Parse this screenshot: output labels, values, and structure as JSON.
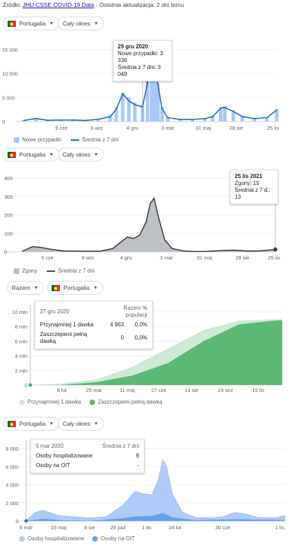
{
  "source": {
    "prefix": "Źródło:",
    "link": "JHU CSSE COVID-19 Data",
    "suffix": "· Ostatnia aktualizacja: 2 dni temu"
  },
  "colors": {
    "cases_bar": "#a8c7fa",
    "cases_line": "#1967d2",
    "deaths_area": "#bdc1c6",
    "deaths_line": "#3c4043",
    "vax_partial": "#ceead6",
    "vax_full": "#5bb974",
    "hosp_area": "#aecbfa",
    "icu_area": "#669df6"
  },
  "panel1": {
    "country": "Portugalia",
    "period": "Cały okres",
    "tooltip": {
      "date": "29 gru 2020",
      "l1": "Nowe przypadki: 3 336",
      "l2": "Średnia z 7 dni: 3 049"
    },
    "legend": {
      "bars": "Nowe przypadki",
      "line": "Średnia z 7 dni"
    }
  },
  "panel2": {
    "country": "Portugalia",
    "period": "Cały okres",
    "tooltip": {
      "date": "25 lis 2021",
      "l1": "Zgony: 15",
      "l2": "Średnia z 7 d.: 13"
    },
    "legend": {
      "area": "Zgony",
      "line": "Średnia z 7 dni"
    }
  },
  "panel3": {
    "scope": "Razem",
    "country": "Portugalia",
    "tooltip": {
      "date": "27 gru 2020",
      "col1": "Razem",
      "col2": "% populacji",
      "rows": [
        {
          "label": "Przynajmniej 1 dawka",
          "v": "4 963",
          "p": "0,0%"
        },
        {
          "label": "Zaszczepieni pełną dawką",
          "v": "0",
          "p": "0,0%"
        }
      ]
    },
    "legend": {
      "partial": "Przynajmniej 1 dawka",
      "full": "Zaszczepieni pełną dawką"
    }
  },
  "panel4": {
    "country": "Portugalia",
    "period": "Cały okres",
    "tooltip": {
      "date": "5 mar 2020",
      "col": "Średnia z 7 dni",
      "rows": [
        {
          "label": "Osoby hospitalizowane",
          "v": "9"
        },
        {
          "label": "Osoby na OIT",
          "v": "-"
        }
      ]
    },
    "legend": {
      "hosp": "Osoby hospitalizowane",
      "icu": "Osoby na OIT"
    }
  },
  "chart_data": [
    {
      "type": "bar",
      "title": "",
      "x_ticks": [
        "9 cze",
        "6 wrz",
        "4 gru",
        "3 mar",
        "31 maj",
        "28 sie",
        "25 lis"
      ],
      "y_ticks": [
        "0",
        "5 000",
        "10 000",
        "15 000"
      ],
      "ylim": [
        0,
        15000
      ],
      "series": [
        {
          "name": "Nowe przypadki",
          "kind": "bar",
          "x": [
            "2020-03-10",
            "2020-04-10",
            "2020-05-10",
            "2020-06-10",
            "2020-07-10",
            "2020-08-10",
            "2020-09-10",
            "2020-10-10",
            "2020-10-25",
            "2020-11-10",
            "2020-11-25",
            "2020-12-10",
            "2020-12-29",
            "2021-01-10",
            "2021-01-20",
            "2021-01-28",
            "2021-02-05",
            "2021-02-15",
            "2021-03-01",
            "2021-04-01",
            "2021-05-01",
            "2021-06-01",
            "2021-06-20",
            "2021-07-10",
            "2021-07-20",
            "2021-08-10",
            "2021-09-01",
            "2021-10-01",
            "2021-11-01",
            "2021-11-25"
          ],
          "y": [
            300,
            700,
            300,
            350,
            350,
            250,
            550,
            1300,
            3000,
            6000,
            5000,
            4000,
            3336,
            9000,
            13000,
            12500,
            8000,
            3000,
            900,
            450,
            450,
            700,
            1200,
            3000,
            3200,
            2300,
            1200,
            700,
            900,
            2600
          ]
        },
        {
          "name": "Średnia z 7 dni",
          "kind": "line",
          "x": [
            "2020-03-10",
            "2020-04-10",
            "2020-05-10",
            "2020-06-10",
            "2020-07-10",
            "2020-08-10",
            "2020-09-10",
            "2020-10-10",
            "2020-10-25",
            "2020-11-10",
            "2020-11-25",
            "2020-12-10",
            "2020-12-29",
            "2021-01-10",
            "2021-01-20",
            "2021-01-28",
            "2021-02-05",
            "2021-02-15",
            "2021-03-01",
            "2021-04-01",
            "2021-05-01",
            "2021-06-01",
            "2021-06-20",
            "2021-07-10",
            "2021-07-20",
            "2021-08-10",
            "2021-09-01",
            "2021-10-01",
            "2021-11-01",
            "2021-11-25"
          ],
          "y": [
            200,
            600,
            250,
            300,
            300,
            200,
            450,
            1000,
            2500,
            5800,
            4300,
            3500,
            3049,
            8000,
            11800,
            11500,
            7500,
            2700,
            800,
            400,
            400,
            600,
            1000,
            2800,
            2900,
            2100,
            1000,
            600,
            800,
            2400
          ]
        }
      ]
    },
    {
      "type": "area",
      "title": "",
      "x_ticks": [
        "9 cze",
        "6 wrz",
        "4 gru",
        "3 mar",
        "31 maj",
        "28 sie",
        "25 lis"
      ],
      "y_ticks": [
        "0",
        "100",
        "200",
        "300",
        "400"
      ],
      "ylim": [
        0,
        400
      ],
      "series": [
        {
          "name": "Zgony",
          "kind": "area",
          "x": [
            "2020-03-10",
            "2020-04-05",
            "2020-04-25",
            "2020-05-20",
            "2020-06-20",
            "2020-07-20",
            "2020-08-20",
            "2020-09-20",
            "2020-10-20",
            "2020-11-10",
            "2020-11-25",
            "2020-12-10",
            "2020-12-25",
            "2021-01-10",
            "2021-01-20",
            "2021-01-30",
            "2021-02-10",
            "2021-02-25",
            "2021-03-15",
            "2021-04-15",
            "2021-05-15",
            "2021-06-15",
            "2021-07-15",
            "2021-08-15",
            "2021-09-15",
            "2021-10-15",
            "2021-11-25"
          ],
          "y": [
            5,
            30,
            25,
            15,
            6,
            5,
            3,
            5,
            20,
            60,
            85,
            75,
            95,
            170,
            270,
            295,
            190,
            70,
            20,
            5,
            3,
            3,
            8,
            10,
            5,
            5,
            15
          ]
        },
        {
          "name": "Średnia z 7 dni",
          "kind": "line",
          "x": [
            "2020-03-10",
            "2020-04-05",
            "2020-04-25",
            "2020-05-20",
            "2020-06-20",
            "2020-07-20",
            "2020-08-20",
            "2020-09-20",
            "2020-10-20",
            "2020-11-10",
            "2020-11-25",
            "2020-12-10",
            "2020-12-25",
            "2021-01-10",
            "2021-01-20",
            "2021-01-30",
            "2021-02-10",
            "2021-02-25",
            "2021-03-15",
            "2021-04-15",
            "2021-05-15",
            "2021-06-15",
            "2021-07-15",
            "2021-08-15",
            "2021-09-15",
            "2021-10-15",
            "2021-11-25"
          ],
          "y": [
            3,
            28,
            24,
            14,
            5,
            4,
            3,
            4,
            18,
            55,
            80,
            72,
            90,
            160,
            260,
            290,
            185,
            65,
            18,
            4,
            2,
            3,
            7,
            9,
            5,
            5,
            13
          ]
        }
      ]
    },
    {
      "type": "area",
      "title": "",
      "x_ticks": [
        "6 lut",
        "25 mar",
        "11 maj",
        "27 cze",
        "13 sie",
        "29 wrz",
        "15 lis"
      ],
      "y_ticks": [
        "0",
        "2 mln",
        "4 mln",
        "6 mln",
        "8 mln",
        "10 mln"
      ],
      "ylim": [
        0,
        10000000
      ],
      "series": [
        {
          "name": "Przynajmniej 1 dawka",
          "kind": "area",
          "x": [
            "2020-12-27",
            "2021-02-06",
            "2021-03-25",
            "2021-05-11",
            "2021-06-27",
            "2021-08-13",
            "2021-09-29",
            "2021-11-15",
            "2021-11-25"
          ],
          "y": [
            4963,
            200000,
            800000,
            2500000,
            5000000,
            7500000,
            8800000,
            9000000,
            9050000
          ]
        },
        {
          "name": "Zaszczepieni pełną dawką",
          "kind": "area",
          "x": [
            "2020-12-27",
            "2021-02-06",
            "2021-03-25",
            "2021-05-11",
            "2021-06-27",
            "2021-08-13",
            "2021-09-29",
            "2021-11-15",
            "2021-11-25"
          ],
          "y": [
            0,
            30000,
            400000,
            1300000,
            3000000,
            6000000,
            8300000,
            8800000,
            8850000
          ]
        }
      ]
    },
    {
      "type": "area",
      "title": "",
      "x_ticks": [
        "5 mar",
        "23 maj",
        "8 sie",
        "28 paź",
        "1 lis",
        "24 lut",
        "30 cze",
        "1 lis"
      ],
      "y_ticks": [
        "0",
        "2 000",
        "4 000",
        "6 000",
        "8 000"
      ],
      "ylim": [
        0,
        8000
      ],
      "series": [
        {
          "name": "Osoby hospitalizowane",
          "kind": "area",
          "x": [
            "2020-03-05",
            "2020-03-25",
            "2020-04-15",
            "2020-05-23",
            "2020-07-01",
            "2020-08-08",
            "2020-09-15",
            "2020-10-28",
            "2020-11-25",
            "2020-12-15",
            "2021-01-05",
            "2021-01-20",
            "2021-02-01",
            "2021-02-10",
            "2021-02-24",
            "2021-03-20",
            "2021-04-20",
            "2021-06-01",
            "2021-06-30",
            "2021-07-25",
            "2021-08-20",
            "2021-09-20",
            "2021-11-01",
            "2021-11-25"
          ],
          "y": [
            9,
            900,
            1200,
            600,
            450,
            350,
            450,
            1800,
            3300,
            3000,
            2900,
            4500,
            6800,
            6000,
            3000,
            1000,
            400,
            350,
            500,
            950,
            800,
            400,
            350,
            600
          ]
        },
        {
          "name": "Osoby na OIT",
          "kind": "area",
          "x": [
            "2020-03-05",
            "2020-04-15",
            "2020-06-01",
            "2020-08-08",
            "2020-10-28",
            "2020-11-25",
            "2021-01-05",
            "2021-02-01",
            "2021-02-24",
            "2021-04-20",
            "2021-07-25",
            "2021-11-25"
          ],
          "y": [
            0,
            250,
            80,
            40,
            300,
            500,
            550,
            900,
            400,
            100,
            200,
            100
          ]
        }
      ]
    }
  ]
}
